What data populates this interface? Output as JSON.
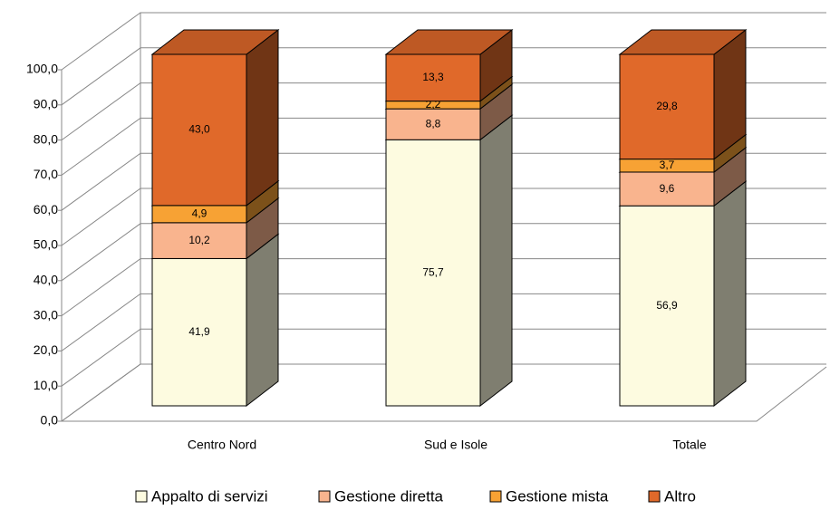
{
  "chart_data": {
    "type": "bar3d_stacked",
    "categories": [
      "Centro Nord",
      "Sud e Isole",
      "Totale"
    ],
    "series": [
      {
        "name": "Appalto di servizi",
        "color": "#fdfbe0",
        "values": [
          41.9,
          75.7,
          56.9
        ],
        "value_labels": [
          "41,9",
          "75,7",
          "56,9"
        ]
      },
      {
        "name": "Gestione diretta",
        "color": "#f9b48e",
        "values": [
          10.2,
          8.8,
          9.6
        ],
        "value_labels": [
          "10,2",
          "8,8",
          "9,6"
        ]
      },
      {
        "name": "Gestione mista",
        "color": "#f7a234",
        "values": [
          4.9,
          2.2,
          3.7
        ],
        "value_labels": [
          "4,9",
          "2,2",
          "3,7"
        ]
      },
      {
        "name": "Altro",
        "color": "#e0692a",
        "values": [
          43.0,
          13.3,
          29.8
        ],
        "value_labels": [
          "43,0",
          "13,3",
          "29,8"
        ]
      }
    ],
    "ylim": [
      0,
      100
    ],
    "yticks": [
      {
        "value": 0,
        "label": "0,0"
      },
      {
        "value": 10,
        "label": "10,0"
      },
      {
        "value": 20,
        "label": "20,0"
      },
      {
        "value": 30,
        "label": "30,0"
      },
      {
        "value": 40,
        "label": "40,0"
      },
      {
        "value": 50,
        "label": "50,0"
      },
      {
        "value": 60,
        "label": "60,0"
      },
      {
        "value": 70,
        "label": "70,0"
      },
      {
        "value": 80,
        "label": "80,0"
      },
      {
        "value": 90,
        "label": "90,0"
      },
      {
        "value": 100,
        "label": "100,0"
      }
    ],
    "grid": true,
    "legend": "bottom"
  }
}
